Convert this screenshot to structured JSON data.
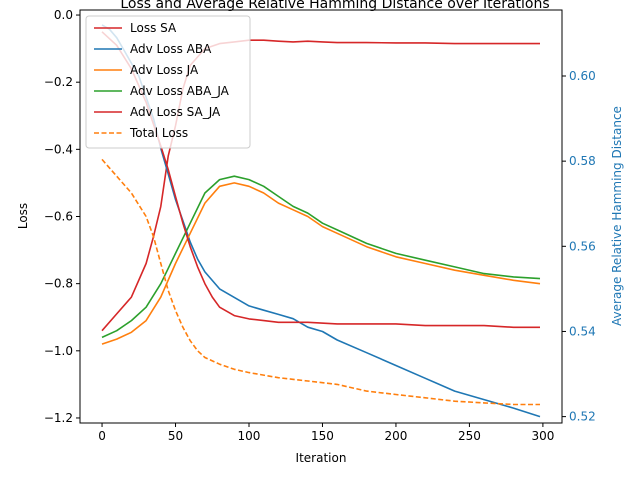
{
  "chart_data": {
    "type": "line",
    "title": "Loss and Average Relative Hamming Distance over Iterations",
    "xlabel": "Iteration",
    "ylabel": "Loss",
    "ylabel_right": "Average Relative Hamming Distance",
    "xlim": [
      -15,
      313
    ],
    "ylim": [
      -1.215,
      0.015
    ],
    "ylim_right": [
      0.5185,
      0.6155
    ],
    "x_ticks": [
      0,
      50,
      100,
      150,
      200,
      250,
      300
    ],
    "y_ticks": [
      -1.2,
      -1.0,
      -0.8,
      -0.6,
      -0.4,
      -0.2,
      0.0
    ],
    "y_ticks_right": [
      0.52,
      0.54,
      0.56,
      0.58,
      0.6
    ],
    "grid": false,
    "legend_position": "top-left",
    "series": [
      {
        "name": "Loss SA",
        "axis": "left",
        "color": "#d62728",
        "style": "solid",
        "x": [
          0,
          10,
          20,
          30,
          35,
          40,
          45,
          50,
          55,
          60,
          70,
          80,
          90,
          100,
          110,
          120,
          130,
          140,
          150,
          160,
          180,
          200,
          220,
          240,
          260,
          280,
          298
        ],
        "y": [
          -0.94,
          -0.89,
          -0.84,
          -0.74,
          -0.66,
          -0.57,
          -0.42,
          -0.33,
          -0.22,
          -0.15,
          -0.1,
          -0.085,
          -0.08,
          -0.075,
          -0.075,
          -0.078,
          -0.08,
          -0.078,
          -0.08,
          -0.082,
          -0.082,
          -0.083,
          -0.083,
          -0.085,
          -0.085,
          -0.085,
          -0.085
        ]
      },
      {
        "name": "Adv Loss ABA",
        "axis": "right",
        "color": "#1f77b4",
        "style": "solid",
        "x": [
          0,
          5,
          10,
          15,
          20,
          25,
          30,
          35,
          40,
          45,
          50,
          55,
          60,
          65,
          70,
          80,
          90,
          100,
          110,
          120,
          130,
          140,
          150,
          160,
          180,
          200,
          220,
          240,
          260,
          280,
          298
        ],
        "y": [
          0.612,
          0.611,
          0.609,
          0.606,
          0.603,
          0.6,
          0.595,
          0.59,
          0.583,
          0.577,
          0.571,
          0.566,
          0.561,
          0.557,
          0.554,
          0.55,
          0.548,
          0.546,
          0.545,
          0.544,
          0.543,
          0.541,
          0.54,
          0.538,
          0.535,
          0.532,
          0.529,
          0.526,
          0.524,
          0.522,
          0.52
        ]
      },
      {
        "name": "Adv Loss JA",
        "axis": "left",
        "color": "#ff7f0e",
        "style": "solid",
        "x": [
          0,
          10,
          20,
          30,
          40,
          50,
          60,
          70,
          80,
          90,
          100,
          110,
          120,
          130,
          140,
          150,
          160,
          180,
          200,
          220,
          240,
          260,
          280,
          298
        ],
        "y": [
          -0.98,
          -0.965,
          -0.945,
          -0.91,
          -0.84,
          -0.74,
          -0.65,
          -0.56,
          -0.51,
          -0.5,
          -0.51,
          -0.53,
          -0.56,
          -0.58,
          -0.6,
          -0.63,
          -0.65,
          -0.69,
          -0.72,
          -0.74,
          -0.76,
          -0.775,
          -0.79,
          -0.8
        ]
      },
      {
        "name": "Adv Loss ABA_JA",
        "axis": "left",
        "color": "#2ca02c",
        "style": "solid",
        "x": [
          0,
          10,
          20,
          30,
          40,
          50,
          60,
          70,
          80,
          90,
          100,
          110,
          120,
          130,
          140,
          150,
          160,
          180,
          200,
          220,
          240,
          260,
          280,
          298
        ],
        "y": [
          -0.96,
          -0.94,
          -0.91,
          -0.87,
          -0.8,
          -0.71,
          -0.62,
          -0.53,
          -0.49,
          -0.48,
          -0.49,
          -0.51,
          -0.54,
          -0.57,
          -0.59,
          -0.62,
          -0.64,
          -0.68,
          -0.71,
          -0.73,
          -0.75,
          -0.77,
          -0.78,
          -0.785
        ]
      },
      {
        "name": "Adv Loss SA_JA",
        "axis": "left",
        "color": "#d62728",
        "style": "solid",
        "x": [
          0,
          10,
          20,
          30,
          40,
          45,
          50,
          55,
          60,
          65,
          70,
          75,
          80,
          90,
          100,
          110,
          120,
          140,
          160,
          180,
          200,
          220,
          240,
          260,
          280,
          298
        ],
        "y": [
          -0.05,
          -0.09,
          -0.16,
          -0.26,
          -0.39,
          -0.46,
          -0.54,
          -0.62,
          -0.69,
          -0.75,
          -0.8,
          -0.84,
          -0.87,
          -0.895,
          -0.905,
          -0.91,
          -0.915,
          -0.915,
          -0.92,
          -0.92,
          -0.92,
          -0.925,
          -0.925,
          -0.925,
          -0.93,
          -0.93
        ]
      },
      {
        "name": "Total Loss",
        "axis": "left",
        "color": "#ff7f0e",
        "style": "dashed",
        "x": [
          0,
          10,
          20,
          30,
          35,
          40,
          45,
          50,
          55,
          60,
          65,
          70,
          80,
          90,
          100,
          120,
          140,
          160,
          180,
          200,
          220,
          240,
          260,
          280,
          298
        ],
        "y": [
          -0.43,
          -0.48,
          -0.53,
          -0.6,
          -0.66,
          -0.74,
          -0.82,
          -0.88,
          -0.93,
          -0.97,
          -1.0,
          -1.02,
          -1.04,
          -1.055,
          -1.065,
          -1.08,
          -1.09,
          -1.1,
          -1.12,
          -1.13,
          -1.14,
          -1.15,
          -1.155,
          -1.16,
          -1.16
        ]
      }
    ]
  }
}
